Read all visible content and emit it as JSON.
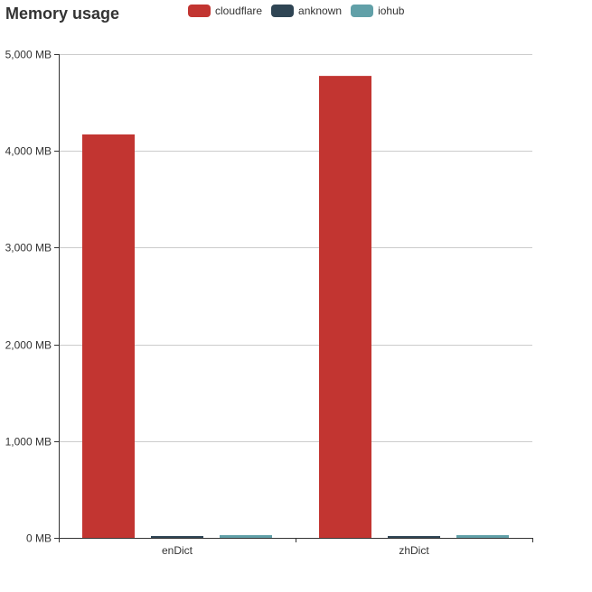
{
  "chart_data": {
    "type": "bar",
    "title": "Memory usage",
    "categories": [
      "enDict",
      "zhDict"
    ],
    "series": [
      {
        "name": "cloudflare",
        "color": "#c23531",
        "values": [
          4170,
          4775
        ]
      },
      {
        "name": "anknown",
        "color": "#2f4554",
        "values": [
          12,
          12
        ]
      },
      {
        "name": "iohub",
        "color": "#61a0a8",
        "values": [
          28,
          28
        ]
      }
    ],
    "ylim": [
      0,
      5000
    ],
    "yticks": [
      0,
      1000,
      2000,
      3000,
      4000,
      5000
    ],
    "ytick_labels": [
      "0 MB",
      "1,000 MB",
      "2,000 MB",
      "3,000 MB",
      "4,000 MB",
      "5,000 MB"
    ],
    "legend_position": "top",
    "grid": true
  }
}
